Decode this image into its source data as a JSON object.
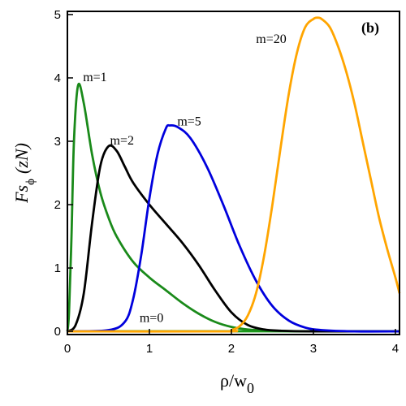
{
  "chart_data": {
    "type": "line",
    "panel_label": "(b)",
    "xlabel": {
      "main": "ρ/w",
      "sub": "0"
    },
    "ylabel": {
      "main": "Fs",
      "sub": "ϕ",
      "unit": "(zN)"
    },
    "xlim": [
      0,
      4.05
    ],
    "ylim": [
      -0.05,
      5.05
    ],
    "x_ticks": [
      0,
      1,
      2,
      3,
      4
    ],
    "y_ticks": [
      0,
      1,
      2,
      3,
      4,
      5
    ],
    "grid": false,
    "legend": "none",
    "series": [
      {
        "name": "m=0",
        "color": "#1a9a1a",
        "points": [
          [
            0,
            0
          ],
          [
            1,
            0.003
          ],
          [
            2,
            0.002
          ],
          [
            3,
            0.001
          ],
          [
            4.05,
            0
          ]
        ]
      },
      {
        "name": "m=1",
        "color": "#1a8a1a",
        "points": [
          [
            0,
            0
          ],
          [
            0.02,
            0.3
          ],
          [
            0.05,
            1.5
          ],
          [
            0.08,
            3.0
          ],
          [
            0.13,
            3.88
          ],
          [
            0.2,
            3.6
          ],
          [
            0.3,
            2.8
          ],
          [
            0.4,
            2.2
          ],
          [
            0.5,
            1.8
          ],
          [
            0.6,
            1.5
          ],
          [
            0.8,
            1.1
          ],
          [
            1.0,
            0.85
          ],
          [
            1.2,
            0.65
          ],
          [
            1.4,
            0.45
          ],
          [
            1.6,
            0.28
          ],
          [
            1.8,
            0.15
          ],
          [
            2.0,
            0.07
          ],
          [
            2.2,
            0.03
          ],
          [
            2.5,
            0.01
          ],
          [
            3.0,
            0.0
          ],
          [
            4.05,
            0.0
          ]
        ]
      },
      {
        "name": "m=2",
        "color": "#000000",
        "points": [
          [
            0,
            0
          ],
          [
            0.1,
            0.1
          ],
          [
            0.2,
            0.6
          ],
          [
            0.3,
            1.7
          ],
          [
            0.4,
            2.6
          ],
          [
            0.5,
            2.92
          ],
          [
            0.6,
            2.85
          ],
          [
            0.7,
            2.6
          ],
          [
            0.8,
            2.35
          ],
          [
            1.0,
            2.0
          ],
          [
            1.2,
            1.7
          ],
          [
            1.4,
            1.4
          ],
          [
            1.6,
            1.05
          ],
          [
            1.8,
            0.65
          ],
          [
            2.0,
            0.3
          ],
          [
            2.2,
            0.1
          ],
          [
            2.4,
            0.03
          ],
          [
            2.6,
            0.01
          ],
          [
            3.0,
            0.0
          ],
          [
            4.05,
            0.0
          ]
        ]
      },
      {
        "name": "m=5",
        "color": "#0000dd",
        "points": [
          [
            0,
            0
          ],
          [
            0.5,
            0.02
          ],
          [
            0.7,
            0.15
          ],
          [
            0.8,
            0.5
          ],
          [
            0.9,
            1.2
          ],
          [
            1.0,
            2.1
          ],
          [
            1.1,
            2.8
          ],
          [
            1.2,
            3.2
          ],
          [
            1.25,
            3.25
          ],
          [
            1.35,
            3.22
          ],
          [
            1.5,
            3.05
          ],
          [
            1.7,
            2.6
          ],
          [
            1.9,
            2.0
          ],
          [
            2.1,
            1.35
          ],
          [
            2.3,
            0.8
          ],
          [
            2.5,
            0.4
          ],
          [
            2.7,
            0.17
          ],
          [
            2.9,
            0.06
          ],
          [
            3.1,
            0.02
          ],
          [
            3.5,
            0.0
          ],
          [
            4.05,
            0.0
          ]
        ]
      },
      {
        "name": "m=20",
        "color": "#ffa500",
        "points": [
          [
            0,
            0
          ],
          [
            1.9,
            0.0
          ],
          [
            2.0,
            0.02
          ],
          [
            2.1,
            0.08
          ],
          [
            2.2,
            0.25
          ],
          [
            2.3,
            0.6
          ],
          [
            2.4,
            1.2
          ],
          [
            2.5,
            2.0
          ],
          [
            2.6,
            2.9
          ],
          [
            2.7,
            3.75
          ],
          [
            2.8,
            4.4
          ],
          [
            2.9,
            4.8
          ],
          [
            3.0,
            4.93
          ],
          [
            3.05,
            4.95
          ],
          [
            3.1,
            4.93
          ],
          [
            3.2,
            4.8
          ],
          [
            3.3,
            4.5
          ],
          [
            3.4,
            4.1
          ],
          [
            3.5,
            3.6
          ],
          [
            3.6,
            3.0
          ],
          [
            3.7,
            2.4
          ],
          [
            3.8,
            1.8
          ],
          [
            3.9,
            1.3
          ],
          [
            4.0,
            0.85
          ],
          [
            4.05,
            0.6
          ]
        ]
      }
    ],
    "annotations": [
      {
        "text": "m=0",
        "x": 0.88,
        "y": 0.15
      },
      {
        "text": "m=1",
        "x": 0.19,
        "y": 3.95
      },
      {
        "text": "m=2",
        "x": 0.52,
        "y": 2.95
      },
      {
        "text": "m=5",
        "x": 1.34,
        "y": 3.25
      },
      {
        "text": "m=20",
        "x": 2.3,
        "y": 4.55
      }
    ]
  }
}
